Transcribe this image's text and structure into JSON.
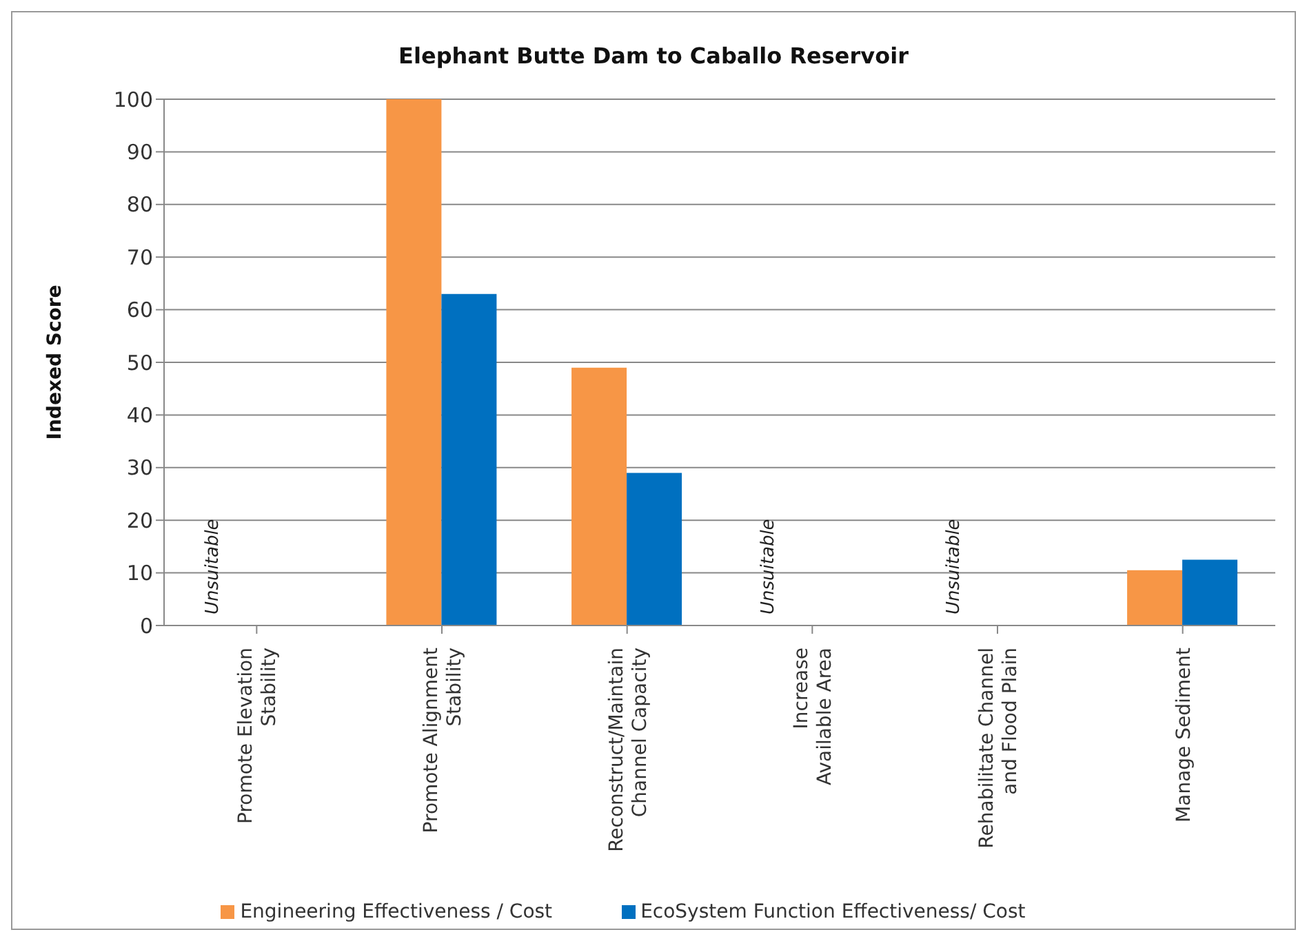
{
  "chart_data": {
    "type": "bar",
    "title": "Elephant Butte Dam to Caballo Reservoir",
    "ylabel": "Indexed Score",
    "categories": [
      "Promote Elevation\nStability",
      "Promote Alignment\nStability",
      "Reconstruct/Maintain\nChannel Capacity",
      "Increase\nAvailable Area",
      "Rehabilitate Channel\nand Flood Plain",
      "Manage Sediment"
    ],
    "series": [
      {
        "name": "Engineering Effectiveness / Cost",
        "color": "#f79646",
        "values": [
          null,
          100,
          49,
          null,
          null,
          10.5
        ]
      },
      {
        "name": "EcoSystem Function Effectiveness/ Cost",
        "color": "#0070c0",
        "values": [
          null,
          63,
          29,
          null,
          null,
          12.5
        ]
      }
    ],
    "ylim": [
      0,
      100
    ],
    "yticks": [
      0,
      10,
      20,
      30,
      40,
      50,
      60,
      70,
      80,
      90,
      100
    ],
    "grid": "y",
    "legend": "bottom",
    "annotations": [
      "Unsuitable",
      "Unsuitable",
      "Unsuitable"
    ]
  }
}
